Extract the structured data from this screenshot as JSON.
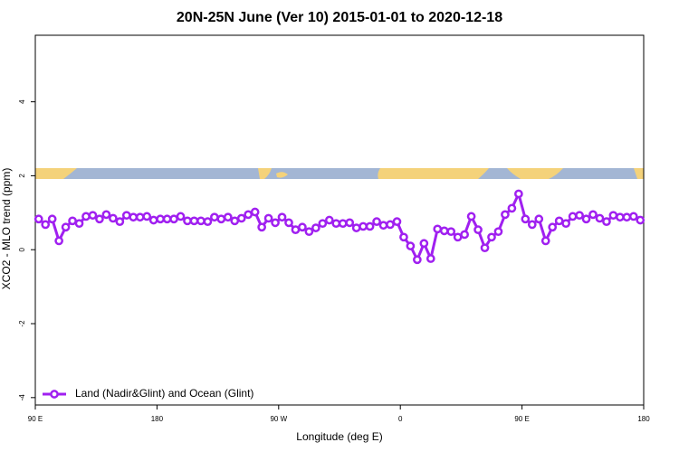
{
  "chart_data": {
    "type": "line",
    "title": "20N-25N June (Ver 10)   2015-01-01 to 2020-12-18",
    "x_label": "Longitude (deg E)",
    "y_label": "XCO2 - MLO trend (ppm)",
    "xlim": [
      90,
      540
    ],
    "ylim": [
      -4.2,
      5.8
    ],
    "xticks": [
      {
        "value": 90,
        "label": "90 E"
      },
      180,
      {
        "value": 270,
        "label": "90 W"
      },
      {
        "value": 360,
        "label": "0"
      },
      {
        "value": 450,
        "label": "90 E"
      },
      {
        "value": 540,
        "label": "180"
      }
    ],
    "yticks": [
      -4,
      -2,
      0,
      2,
      4
    ],
    "legend": "bottom-left",
    "x": [
      92.5,
      97.5,
      102.5,
      107.5,
      112.5,
      117.5,
      122.5,
      127.5,
      132.5,
      137.5,
      142.5,
      147.5,
      152.5,
      157.5,
      162.5,
      167.5,
      172.5,
      177.5,
      182.5,
      187.5,
      192.5,
      197.5,
      202.5,
      207.5,
      212.5,
      217.5,
      222.5,
      227.5,
      232.5,
      237.5,
      242.5,
      247.5,
      252.5,
      257.5,
      262.5,
      267.5,
      272.5,
      277.5,
      282.5,
      287.5,
      292.5,
      297.5,
      302.5,
      307.5,
      312.5,
      317.5,
      322.5,
      327.5,
      332.5,
      337.5,
      342.5,
      347.5,
      352.5,
      357.5,
      362.5,
      367.5,
      372.5,
      377.5,
      382.5,
      387.5,
      392.5,
      397.5,
      402.5,
      407.5,
      412.5,
      417.5,
      422.5,
      427.5,
      432.5,
      437.5,
      442.5,
      447.5,
      452.5,
      457.5,
      462.5,
      467.5,
      472.5,
      477.5,
      482.5,
      487.5,
      492.5,
      497.5,
      502.5,
      507.5,
      512.5,
      517.5,
      522.5,
      527.5,
      532.5,
      537.5
    ],
    "series": [
      {
        "name": "Land (Nadir&Glint) and Ocean (Glint)",
        "color": "#a020f0",
        "values": [
          0.83,
          0.68,
          0.83,
          0.24,
          0.61,
          0.78,
          0.71,
          0.9,
          0.93,
          0.83,
          0.95,
          0.85,
          0.76,
          0.93,
          0.88,
          0.88,
          0.9,
          0.8,
          0.83,
          0.83,
          0.83,
          0.9,
          0.78,
          0.78,
          0.78,
          0.76,
          0.88,
          0.83,
          0.88,
          0.78,
          0.85,
          0.95,
          1.02,
          0.61,
          0.85,
          0.73,
          0.88,
          0.73,
          0.54,
          0.61,
          0.49,
          0.59,
          0.71,
          0.8,
          0.71,
          0.71,
          0.73,
          0.59,
          0.63,
          0.63,
          0.76,
          0.66,
          0.68,
          0.76,
          0.34,
          0.1,
          -0.27,
          0.17,
          -0.24,
          0.56,
          0.51,
          0.49,
          0.34,
          0.41,
          0.9,
          0.54,
          0.05,
          0.34,
          0.49,
          0.95,
          1.12,
          1.51,
          0.83,
          0.68,
          0.83,
          0.24,
          0.61,
          0.78,
          0.71,
          0.9,
          0.93,
          0.83,
          0.95,
          0.85,
          0.76,
          0.93,
          0.88,
          0.88,
          0.9,
          0.8
        ]
      }
    ]
  }
}
